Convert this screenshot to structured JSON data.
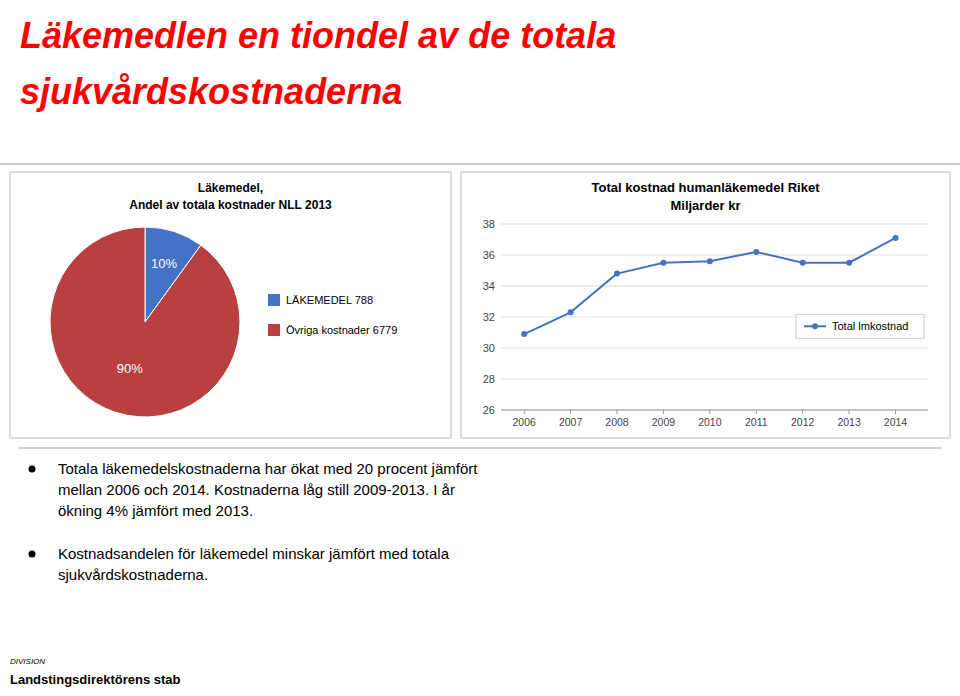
{
  "title": [
    "Läkemedlen en tiondel av de totala",
    "sjukvårdskostnaderna"
  ],
  "color": "#FF0000",
  "chart_data": [
    {
      "type": "pie",
      "title": "Läkemedel,",
      "subtitle": "Andel av totala kostnader NLL 2013",
      "categories": [
        "LÄKEMEDEL 788",
        "Övriga kostnader 6779"
      ],
      "values": [
        10,
        90
      ],
      "value_labels": [
        "10%",
        "90%"
      ],
      "colors": [
        "#4472C4",
        "#B94040"
      ],
      "data_labels": true,
      "legend": "right"
    },
    {
      "type": "line",
      "title": "Total kostnad humanläkemedel Riket",
      "subtitle": "Miljarder kr",
      "x": [
        2006,
        2007,
        2008,
        2009,
        2010,
        2011,
        2012,
        2013,
        2014
      ],
      "series": [
        {
          "name": "Total lmkostnad",
          "color": "#4472C4",
          "marker": "circle",
          "values": [
            30.9,
            32.3,
            34.8,
            35.5,
            35.6,
            36.2,
            35.5,
            35.5,
            37.1
          ]
        }
      ],
      "xlim": [
        2005.5,
        2014.7
      ],
      "xticks": [
        2006,
        2007,
        2008,
        2009,
        2010,
        2011,
        2012,
        2013,
        2014
      ],
      "ylim": [
        26,
        38
      ],
      "yticks": [
        26,
        28,
        30,
        32,
        34,
        36,
        38
      ],
      "grid": true,
      "legend": "right"
    }
  ],
  "bullets": [
    [
      "Totala läkemedelskostnaderna har ökat med 20 procent jämfört",
      "mellan 2006 och 2014. Kostnaderna låg still 2009-2013. I år",
      "ökning 4% jämfört med 2013."
    ],
    [
      "Kostnadsandelen för läkemedel minskar jämfört med totala",
      "sjukvårdskostnaderna."
    ]
  ],
  "footer": [
    "DIVISION",
    "Landstingsdirektörens stab"
  ]
}
